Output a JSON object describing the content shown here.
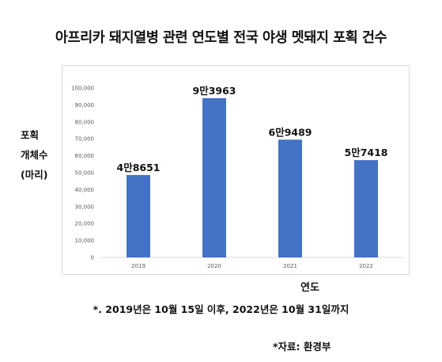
{
  "chart_data": {
    "type": "bar",
    "title": "아프리카 돼지열병 관련 연도별 전국 야생 멧돼지 포획 건수",
    "ylabel_lines": [
      "포획",
      "개체수",
      "(마리)"
    ],
    "xlabel": "연도",
    "categories": [
      "2019",
      "2020",
      "2021",
      "2022"
    ],
    "values": [
      48651,
      93963,
      69489,
      57418
    ],
    "data_labels": [
      "4만8651",
      "9만3963",
      "6만9489",
      "5만7418"
    ],
    "ylim": [
      0,
      100000
    ],
    "yticks": [
      0,
      10000,
      20000,
      30000,
      40000,
      50000,
      60000,
      70000,
      80000,
      90000,
      100000
    ],
    "ytick_labels": [
      "0",
      "10,000",
      "20,000",
      "30,000",
      "40,000",
      "50,000",
      "60,000",
      "70,000",
      "80,000",
      "90,000",
      "100,000"
    ],
    "grid": false,
    "bar_color": "#4472c4",
    "axis_color": "#d9d9d9",
    "tick_text_color": "#595959"
  },
  "footnote": "*. 2019년은 10월 15일 이후, 2022년은 10월 31일까지",
  "source": "*자료: 환경부"
}
